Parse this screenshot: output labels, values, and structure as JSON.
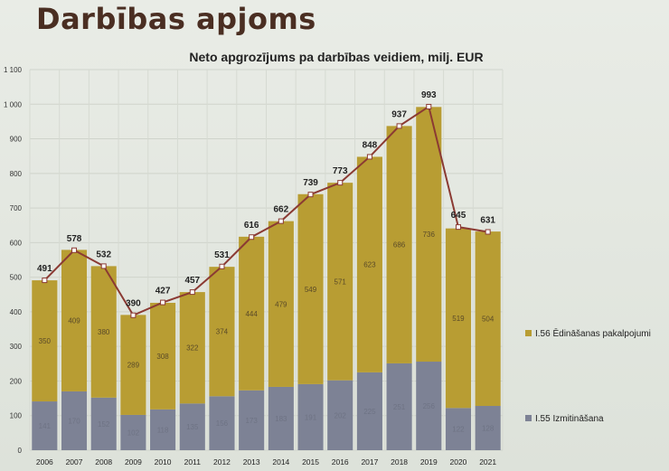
{
  "page": {
    "title": "Darbības apjoms"
  },
  "chart_data": {
    "type": "bar",
    "stacked": true,
    "title": "Neto apgrozījums pa darbības veidiem, milj. EUR",
    "categories": [
      "2006",
      "2007",
      "2008",
      "2009",
      "2010",
      "2011",
      "2012",
      "2013",
      "2014",
      "2015",
      "2016",
      "2017",
      "2018",
      "2019",
      "2020",
      "2021"
    ],
    "series": [
      {
        "name": "I.55 Izmitināšana",
        "color": "#7d8295",
        "values": [
          141,
          170,
          152,
          102,
          118,
          135,
          156,
          173,
          183,
          191,
          202,
          225,
          251,
          256,
          122,
          128
        ]
      },
      {
        "name": "I.56 Ēdināšanas pakalpojumi",
        "color": "#b89d33",
        "values": [
          350,
          409,
          380,
          289,
          308,
          322,
          374,
          444,
          479,
          549,
          571,
          623,
          686,
          736,
          519,
          504
        ]
      }
    ],
    "totals": {
      "values": [
        491,
        578,
        532,
        390,
        427,
        457,
        531,
        616,
        662,
        739,
        773,
        848,
        937,
        993,
        645,
        631
      ],
      "line_color": "#8b3a33"
    },
    "yticks": [
      "0",
      "100",
      "200",
      "300",
      "400",
      "500",
      "600",
      "700",
      "800",
      "900",
      "1 000",
      "1 100"
    ],
    "ylim": [
      0,
      1100
    ],
    "grid": true,
    "legend": "right"
  }
}
